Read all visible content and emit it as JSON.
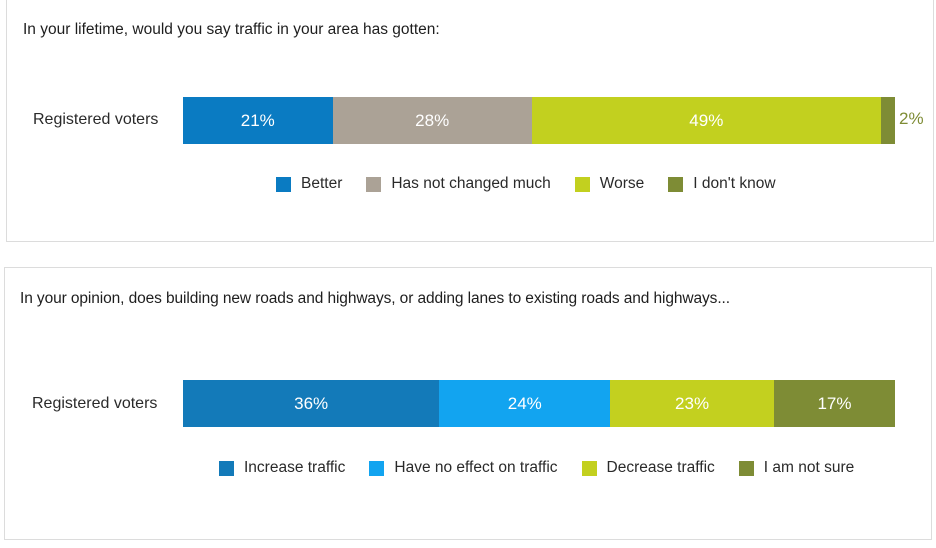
{
  "chart_data": [
    {
      "type": "bar",
      "orientation": "horizontal-stacked",
      "title": "In your lifetime, would you say traffic in your area has gotten:",
      "categories": [
        "Registered voters"
      ],
      "series": [
        {
          "name": "Better",
          "values": [
            21
          ],
          "label": "21%",
          "color": "#0a7bc2"
        },
        {
          "name": "Has not changed much",
          "values": [
            28
          ],
          "label": "28%",
          "color": "#aba296"
        },
        {
          "name": "Worse",
          "values": [
            49
          ],
          "label": "49%",
          "color": "#c2d01f"
        },
        {
          "name": "I don't know",
          "values": [
            2
          ],
          "label": "2%",
          "color": "#7e8c35"
        }
      ],
      "xlim": [
        0,
        100
      ],
      "legend": "bottom",
      "grid": false
    },
    {
      "type": "bar",
      "orientation": "horizontal-stacked",
      "title": "In your opinion, does building new roads and highways, or adding lanes to existing roads and highways...",
      "categories": [
        "Registered voters"
      ],
      "series": [
        {
          "name": "Increase traffic",
          "values": [
            36
          ],
          "label": "36%",
          "color": "#137ab9"
        },
        {
          "name": "Have no effect on traffic",
          "values": [
            24
          ],
          "label": "24%",
          "color": "#12a4f0"
        },
        {
          "name": "Decrease traffic",
          "values": [
            23
          ],
          "label": "23%",
          "color": "#c3d01f"
        },
        {
          "name": "I am not sure",
          "values": [
            17
          ],
          "label": "17%",
          "color": "#7e8c35"
        }
      ],
      "xlim": [
        0,
        100
      ],
      "legend": "bottom",
      "grid": false
    }
  ]
}
